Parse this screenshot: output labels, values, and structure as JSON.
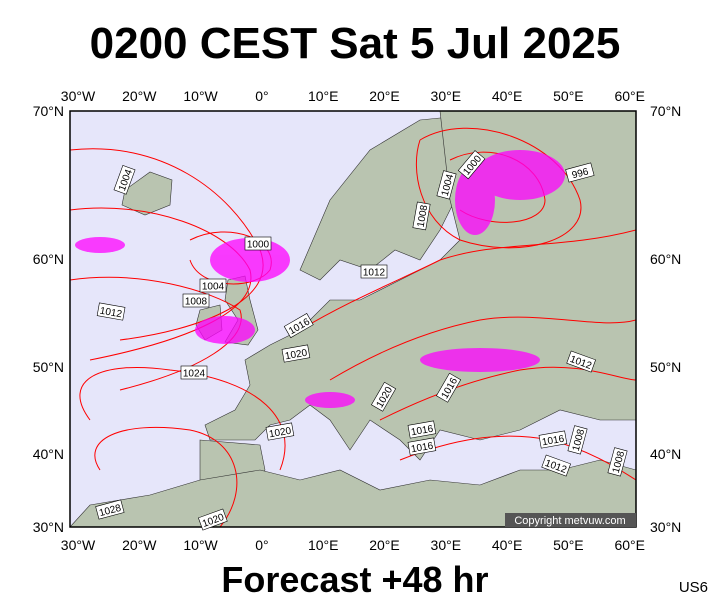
{
  "title": "0200 CEST Sat 5 Jul 2025",
  "lon_labels": [
    "30°W",
    "20°W",
    "10°W",
    "0°",
    "10°E",
    "20°E",
    "30°E",
    "40°E",
    "50°E",
    "60°E"
  ],
  "lat_labels": [
    "70°N",
    "60°N",
    "50°N",
    "40°N",
    "30°N"
  ],
  "isobar_labels": [
    "1004",
    "1000",
    "1004",
    "1008",
    "1012",
    "1016",
    "1020",
    "1024",
    "1020",
    "1028",
    "1020",
    "1012",
    "1008",
    "1004",
    "1000",
    "996",
    "1020",
    "1016",
    "1016",
    "1016",
    "1016",
    "1012",
    "1012",
    "1008",
    "1008"
  ],
  "copyright": "Copyright metvuw.com",
  "footer": "Forecast +48 hr",
  "code": "US6"
}
